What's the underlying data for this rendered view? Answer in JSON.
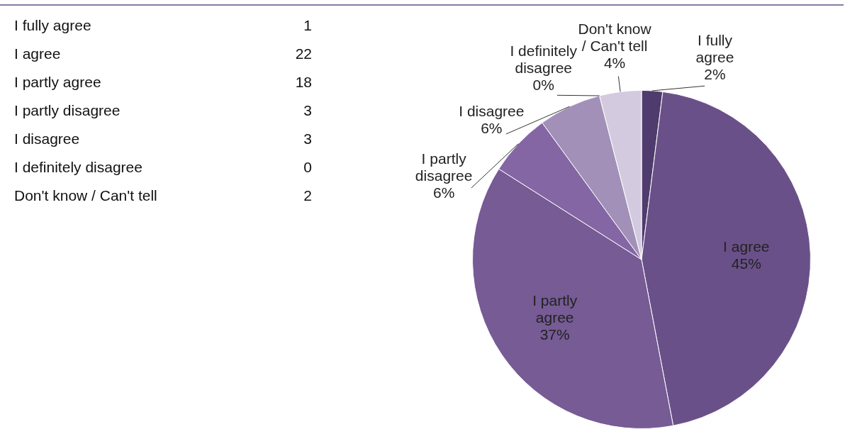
{
  "chart_data": {
    "type": "pie",
    "categories": [
      "I fully agree",
      "I agree",
      "I partly agree",
      "I partly disagree",
      "I disagree",
      "I definitely disagree",
      "Don't know / Can't tell"
    ],
    "values": [
      2,
      45,
      37,
      6,
      6,
      0,
      4
    ],
    "colors": [
      "#4f3b6e",
      "#6a5088",
      "#765b95",
      "#8466a4",
      "#a290b9",
      "#8f7aab",
      "#d4cadf"
    ],
    "value_labels": [
      "2%",
      "45%",
      "37%",
      "6%",
      "6%",
      "0%",
      "4%"
    ],
    "annotations": [
      "1",
      "22",
      "18",
      "3",
      "3",
      "0",
      "2"
    ]
  }
}
